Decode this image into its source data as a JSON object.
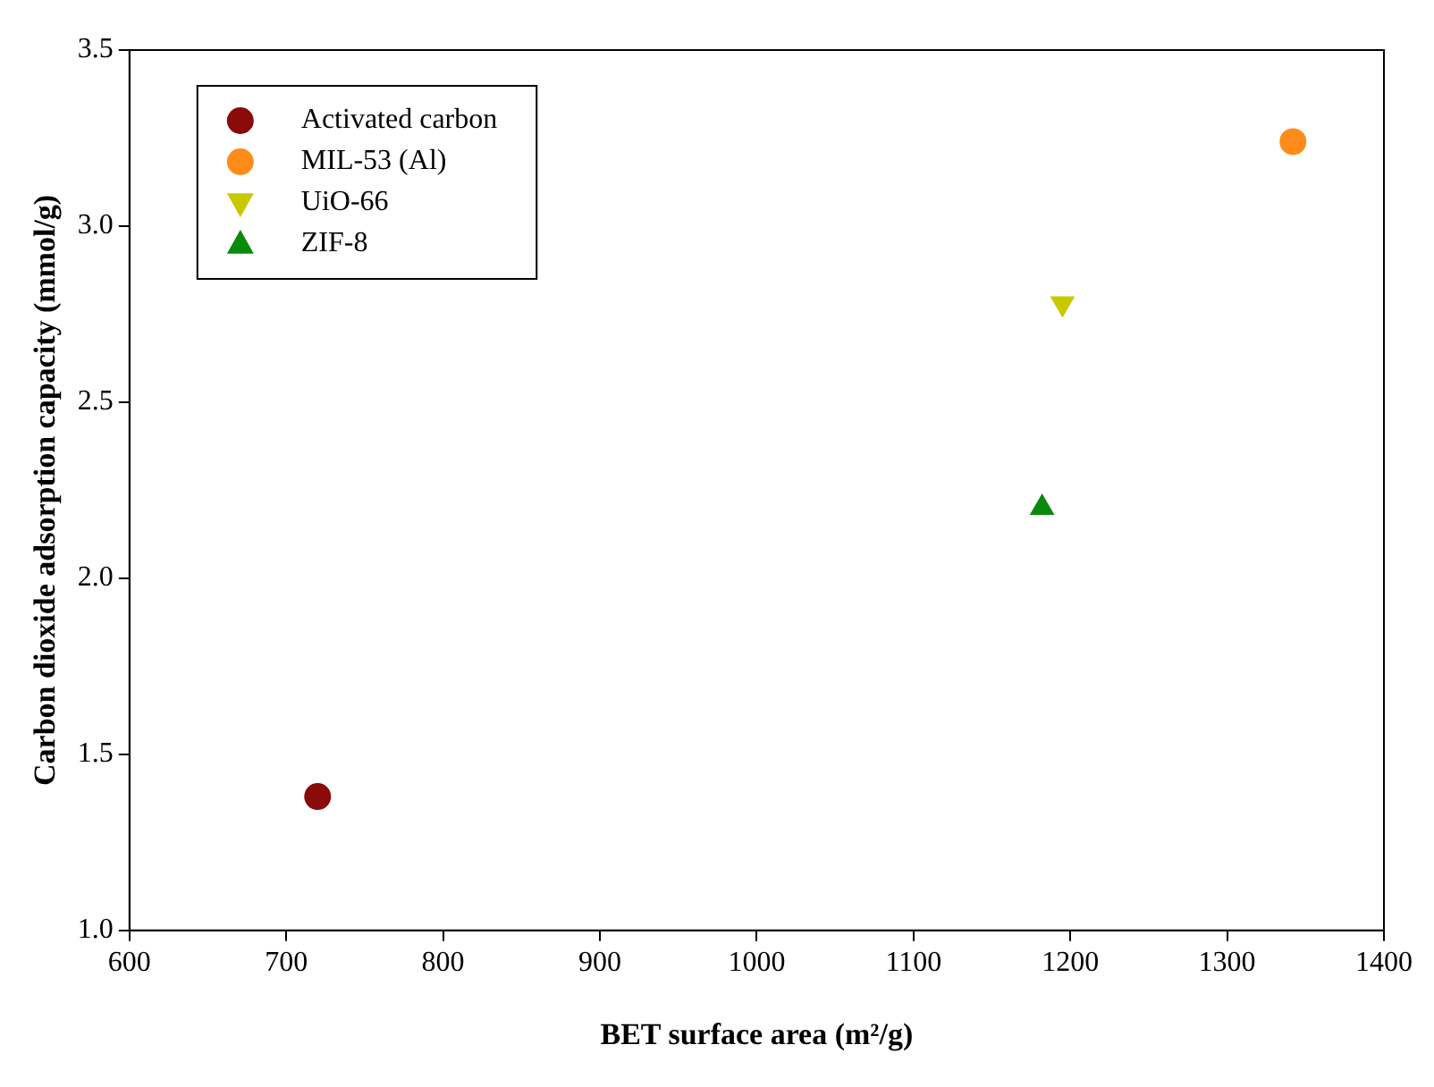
{
  "chart_data": {
    "type": "scatter",
    "xlabel": "BET surface area (m²/g)",
    "ylabel": "Carbon dioxide adsorption capacity (mmol/g)",
    "series": [
      {
        "name": "Activated carbon",
        "color": "#8b0a0a",
        "x": [
          720
        ],
        "values": [
          1.38
        ],
        "marker": "circle"
      },
      {
        "name": "MIL-53 (Al)",
        "color": "#ff8c1a",
        "x": [
          1342
        ],
        "values": [
          3.24
        ],
        "marker": "circle"
      },
      {
        "name": "UiO-66",
        "color": "#c8c800",
        "x": [
          1195
        ],
        "values": [
          2.78
        ],
        "marker": "triangle_down"
      },
      {
        "name": "ZIF-8",
        "color": "#0a8a0a",
        "x": [
          1182
        ],
        "values": [
          2.2
        ],
        "marker": "triangle"
      }
    ],
    "xlim": [
      600,
      1400
    ],
    "xticks": [
      600,
      700,
      800,
      900,
      1000,
      1100,
      1200,
      1300,
      1400
    ],
    "ylim": [
      1.0,
      3.5
    ],
    "yticks": [
      {
        "value": 1,
        "label": "1.0"
      },
      {
        "value": 1.5,
        "label": "1.5"
      },
      {
        "value": 2,
        "label": "2.0"
      },
      {
        "value": 2.5,
        "label": "2.5"
      },
      {
        "value": 3,
        "label": "3.0"
      },
      {
        "value": 3.5,
        "label": "3.5"
      }
    ],
    "grid": false,
    "legend": "top left"
  }
}
